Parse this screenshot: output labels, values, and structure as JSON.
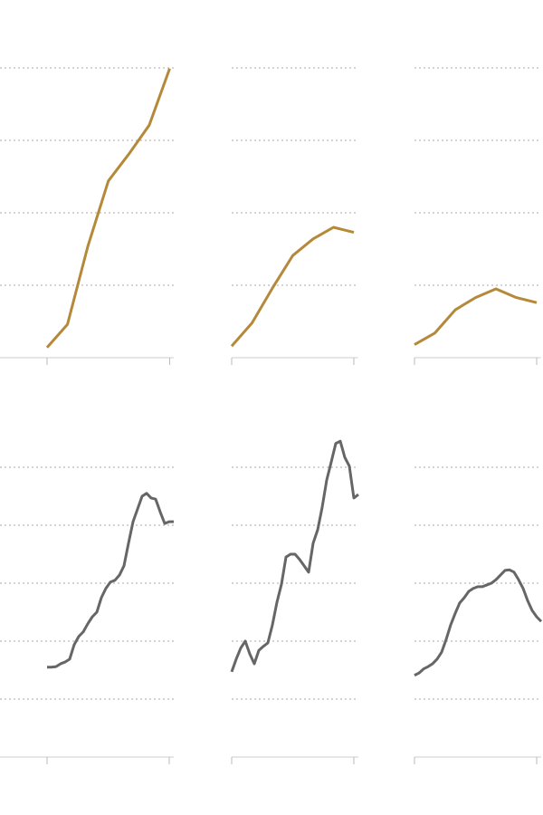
{
  "chart_data": [
    {
      "type": "line",
      "color": "#b5893a",
      "grid": true,
      "x": [
        0,
        1,
        2,
        3,
        4,
        5,
        6
      ],
      "values": [
        0.14,
        0.46,
        1.54,
        2.44,
        2.81,
        3.21,
        3.99
      ],
      "xlim": [
        -2.3,
        6.2
      ],
      "xticks": [
        0,
        6
      ],
      "ylim": [
        0,
        4
      ],
      "yticks": [
        1,
        2,
        3,
        4
      ]
    },
    {
      "type": "line",
      "color": "#b5893a",
      "grid": true,
      "x": [
        0,
        1,
        2,
        3,
        4,
        5,
        6
      ],
      "values": [
        0.16,
        0.48,
        0.96,
        1.41,
        1.64,
        1.8,
        1.73
      ],
      "xlim": [
        0,
        6.2
      ],
      "xticks": [
        0,
        6
      ],
      "ylim": [
        0,
        4
      ],
      "yticks": [
        1,
        2,
        3,
        4
      ]
    },
    {
      "type": "line",
      "color": "#b5893a",
      "grid": true,
      "x": [
        0,
        1,
        2,
        3,
        4,
        5,
        6
      ],
      "values": [
        0.18,
        0.34,
        0.66,
        0.83,
        0.95,
        0.83,
        0.76
      ],
      "xlim": [
        0,
        6.2
      ],
      "xticks": [
        0,
        6
      ],
      "ylim": [
        0,
        4
      ],
      "yticks": [
        1,
        2,
        3,
        4
      ]
    },
    {
      "type": "line",
      "color": "#666666",
      "grid": true,
      "x": [
        0,
        1,
        2,
        3,
        4,
        5,
        6,
        7,
        8,
        9,
        10,
        11,
        12,
        13,
        14,
        15,
        16,
        17,
        18,
        19,
        20,
        21,
        22,
        23,
        24,
        25,
        26,
        27,
        28
      ],
      "values": [
        1.55,
        1.55,
        1.56,
        1.61,
        1.64,
        1.69,
        1.94,
        2.08,
        2.16,
        2.3,
        2.42,
        2.5,
        2.75,
        2.91,
        3.02,
        3.05,
        3.14,
        3.3,
        3.69,
        4.06,
        4.28,
        4.5,
        4.55,
        4.47,
        4.45,
        4.23,
        4.03,
        4.06,
        4.06
      ],
      "xlim": [
        -10.4,
        28
      ],
      "xticks": [
        0,
        27
      ],
      "ylim": [
        0,
        5.5
      ],
      "yticks": [
        1,
        2,
        3,
        4,
        5
      ]
    },
    {
      "type": "line",
      "color": "#666666",
      "grid": true,
      "x": [
        0,
        1,
        2,
        3,
        4,
        5,
        6,
        7,
        8,
        9,
        10,
        11,
        12,
        13,
        14,
        15,
        16,
        17,
        18,
        19,
        20,
        21,
        22,
        23,
        24,
        25,
        26,
        27,
        28
      ],
      "values": [
        1.47,
        1.69,
        1.88,
        2.0,
        1.78,
        1.61,
        1.84,
        1.91,
        1.97,
        2.28,
        2.67,
        2.98,
        3.45,
        3.5,
        3.5,
        3.41,
        3.3,
        3.19,
        3.69,
        3.92,
        4.31,
        4.78,
        5.09,
        5.41,
        5.45,
        5.17,
        5.02,
        4.47,
        4.53
      ],
      "xlim": [
        0,
        28
      ],
      "xticks": [
        0,
        27
      ],
      "ylim": [
        0,
        5.5
      ],
      "yticks": [
        1,
        2,
        3,
        4,
        5
      ]
    },
    {
      "type": "line",
      "color": "#666666",
      "grid": true,
      "x": [
        0,
        1,
        2,
        3,
        4,
        5,
        6,
        7,
        8,
        9,
        10,
        11,
        12,
        13,
        14,
        15,
        16,
        17,
        18,
        19,
        20,
        21,
        22,
        23,
        24,
        25,
        26,
        27,
        28
      ],
      "values": [
        1.41,
        1.45,
        1.52,
        1.56,
        1.61,
        1.69,
        1.81,
        2.03,
        2.28,
        2.48,
        2.66,
        2.75,
        2.86,
        2.91,
        2.94,
        2.94,
        2.97,
        3.0,
        3.06,
        3.14,
        3.22,
        3.23,
        3.19,
        3.06,
        2.91,
        2.7,
        2.53,
        2.42,
        2.34
      ],
      "xlim": [
        0,
        28
      ],
      "xticks": [
        0,
        27
      ],
      "ylim": [
        0,
        5.5
      ],
      "yticks": [
        1,
        2,
        3,
        4,
        5
      ]
    }
  ]
}
